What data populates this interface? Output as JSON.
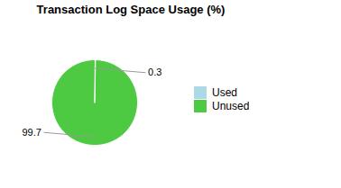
{
  "chart_data": {
    "type": "pie",
    "title": "Transaction Log Space Usage (%)",
    "categories": [
      "Used",
      "Unused"
    ],
    "values": [
      0.3,
      99.7
    ],
    "colors": [
      "#add8e6",
      "#4dc942"
    ],
    "data_labels": true,
    "legend": "right"
  }
}
